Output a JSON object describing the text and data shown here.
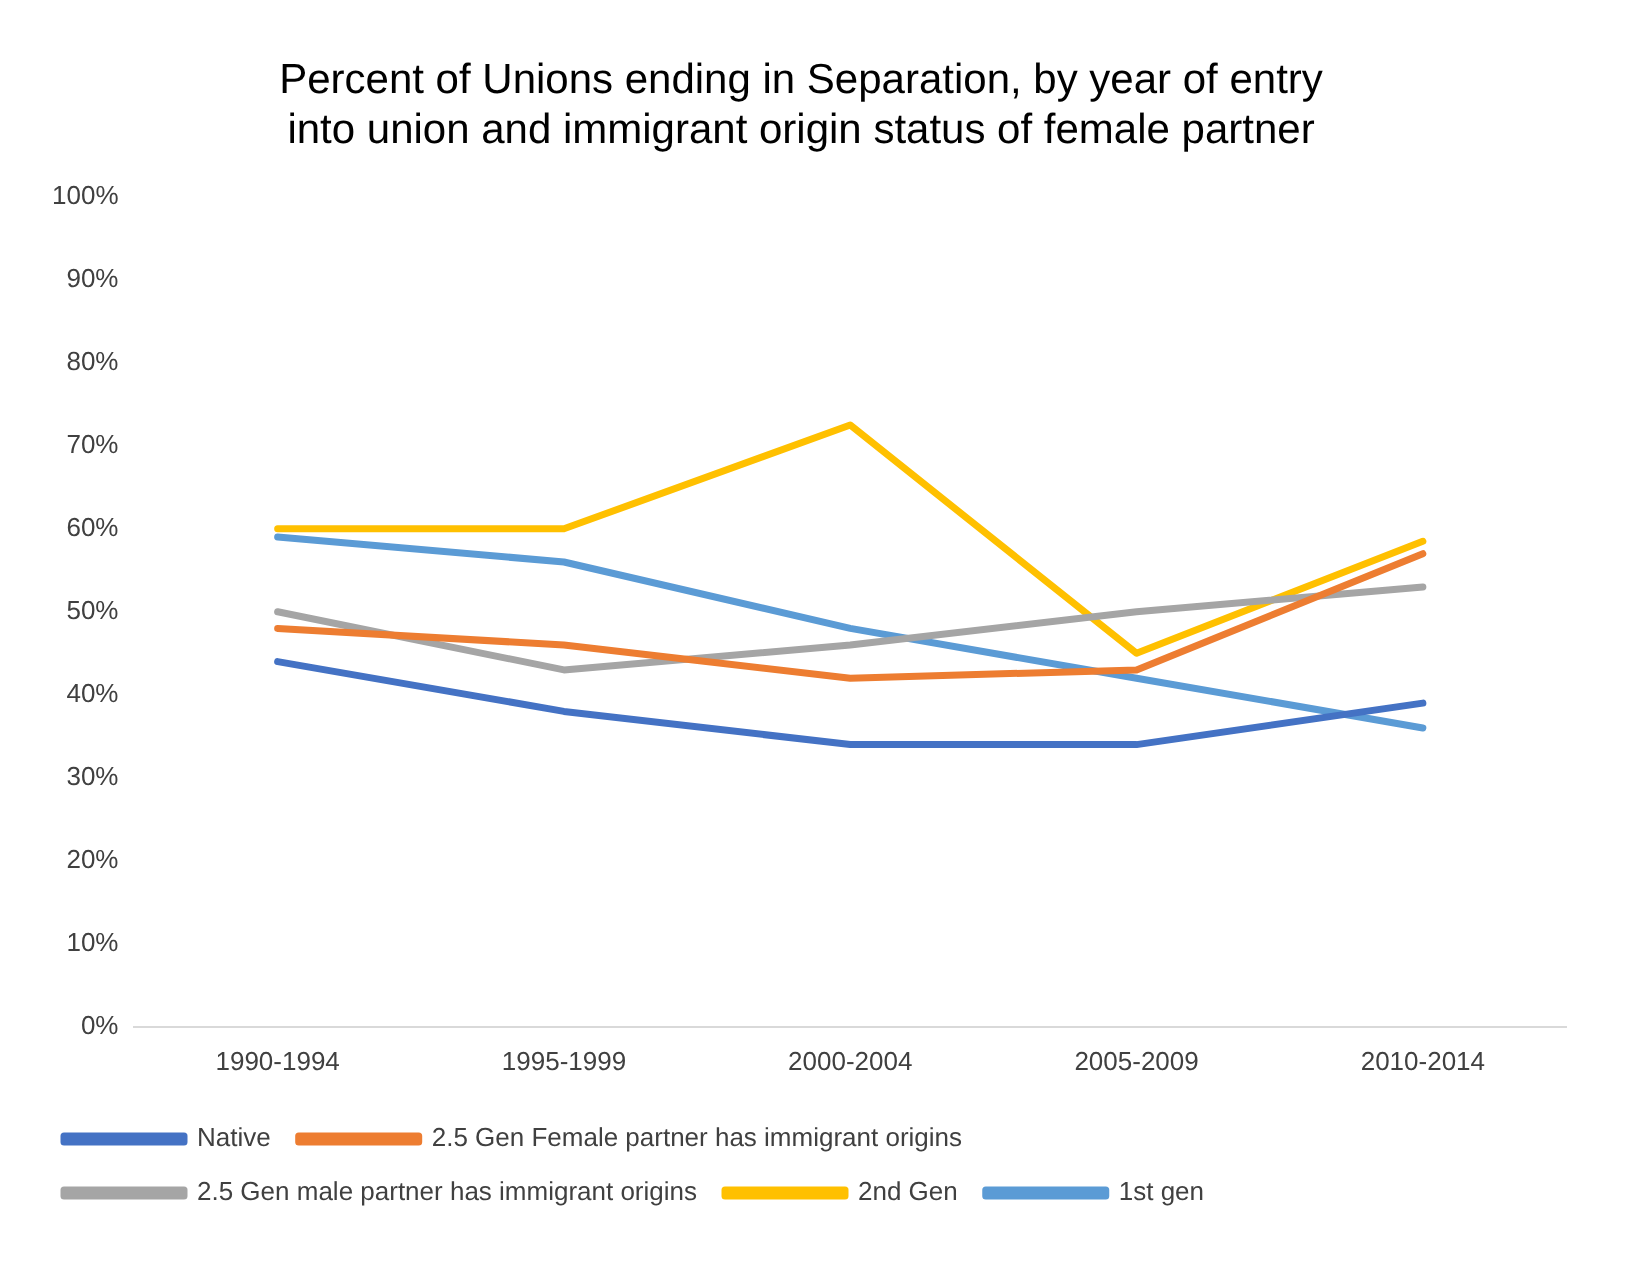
{
  "chart_data": {
    "type": "line",
    "title": "Percent of Unions ending in Separation, by year of entry into union and immigrant origin status of female partner",
    "categories": [
      "1990-1994",
      "1995-1999",
      "2000-2004",
      "2005-2009",
      "2010-2014"
    ],
    "series": [
      {
        "name": "Native",
        "color": "#4472c4",
        "values": [
          44,
          38,
          34,
          34,
          39
        ]
      },
      {
        "name": "2.5 Gen Female partner has immigrant origins",
        "color": "#ed7d31",
        "values": [
          48,
          46,
          42,
          43,
          57
        ]
      },
      {
        "name": "2.5 Gen male partner has immigrant origins",
        "color": "#a5a5a5",
        "values": [
          50,
          43,
          46,
          50,
          53
        ]
      },
      {
        "name": "2nd Gen",
        "color": "#ffc000",
        "values": [
          60,
          60,
          72.5,
          45,
          58.5
        ]
      },
      {
        "name": "1st gen",
        "color": "#5b9bd5",
        "values": [
          59,
          56,
          48,
          42,
          36
        ]
      }
    ],
    "ylim": [
      0,
      100
    ],
    "yticks": [
      {
        "value": 0,
        "label": "0%"
      },
      {
        "value": 10,
        "label": "10%"
      },
      {
        "value": 20,
        "label": "20%"
      },
      {
        "value": 30,
        "label": "30%"
      },
      {
        "value": 40,
        "label": "40%"
      },
      {
        "value": 50,
        "label": "50%"
      },
      {
        "value": 60,
        "label": "60%"
      },
      {
        "value": 70,
        "label": "70%"
      },
      {
        "value": 80,
        "label": "80%"
      },
      {
        "value": 90,
        "label": "90%"
      },
      {
        "value": 100,
        "label": "100%"
      }
    ],
    "grid": false,
    "legend": "bottom",
    "marker": "none",
    "line_style": "solid"
  }
}
